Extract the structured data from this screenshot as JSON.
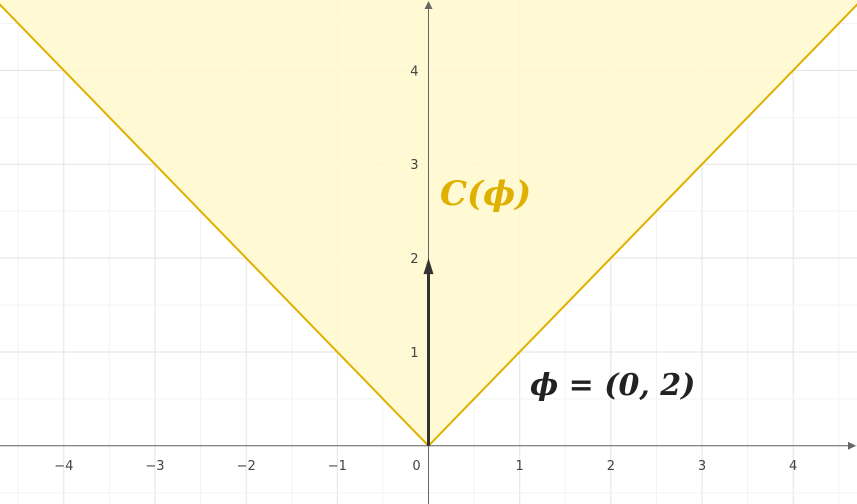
{
  "chart_data": {
    "type": "diagram",
    "xlim": [
      -4.7,
      4.7
    ],
    "ylim": [
      -0.62,
      4.75
    ],
    "x_ticks": [
      -4,
      -3,
      -2,
      -1,
      0,
      1,
      2,
      3,
      4
    ],
    "y_ticks": [
      1,
      2,
      3,
      4
    ],
    "x_tick_labels": [
      "−4",
      "−3",
      "−2",
      "−1",
      "0",
      "1",
      "2",
      "3",
      "4"
    ],
    "y_tick_labels": [
      "1",
      "2",
      "3",
      "4"
    ],
    "grid": true,
    "cone": {
      "label": "C(ϕ)",
      "apex": [
        0,
        0
      ],
      "boundary_slopes": [
        -1,
        1
      ],
      "color": "#e0b000",
      "fill": "#fff9cc"
    },
    "vector": {
      "label": "ϕ = (0, 2)",
      "from": [
        0,
        0
      ],
      "to": [
        0,
        2
      ],
      "color": "#333333"
    }
  }
}
